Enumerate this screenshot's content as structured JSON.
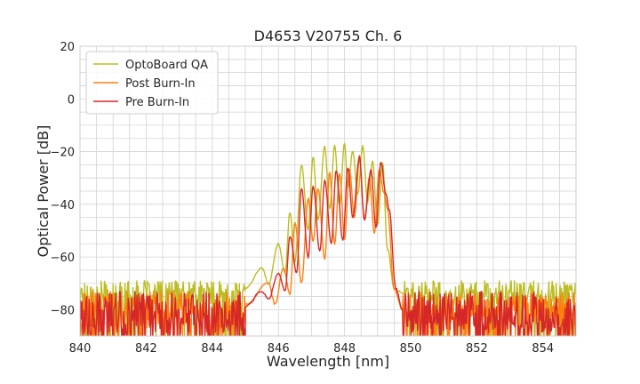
{
  "chart_data": {
    "type": "line",
    "title": "D4653 V20755 Ch. 6",
    "xlabel": "Wavelength [nm]",
    "ylabel": "Optical Power [dB]",
    "xlim": [
      840,
      855
    ],
    "ylim": [
      -90,
      20
    ],
    "xticks": [
      840,
      842,
      844,
      846,
      848,
      850,
      852,
      854
    ],
    "yticks": [
      -80,
      -60,
      -40,
      -20,
      0,
      20
    ],
    "xtick_labels": [
      "840",
      "842",
      "844",
      "846",
      "848",
      "850",
      "852",
      "854"
    ],
    "ytick_labels": [
      "−80",
      "−60",
      "−40",
      "−20",
      "0",
      "20"
    ],
    "x_minor_step": 0.5,
    "y_minor_step": 5,
    "grid": true,
    "legend_position": "top-left",
    "series": [
      {
        "name": "OptoBoard QA",
        "color": "#bcbd22",
        "noise_floor": -74,
        "noise_spread": 5,
        "x": [
          845.0,
          845.5,
          845.7,
          846.0,
          846.2,
          846.35,
          846.5,
          846.7,
          846.9,
          847.05,
          847.2,
          847.4,
          847.55,
          847.7,
          847.85,
          848.0,
          848.1,
          848.25,
          848.4,
          848.55,
          848.7,
          848.85,
          849.0,
          849.15,
          849.3,
          849.5,
          849.8
        ],
        "y": [
          -72,
          -64,
          -70,
          -55,
          -66,
          -43,
          -62,
          -25,
          -50,
          -22,
          -46,
          -18,
          -42,
          -18,
          -40,
          -17,
          -34,
          -20,
          -36,
          -18,
          -39,
          -24,
          -48,
          -24,
          -57,
          -72,
          -74
        ]
      },
      {
        "name": "Post Burn-In",
        "color": "#ff7f0e",
        "noise_floor": -80,
        "noise_spread": 7,
        "x": [
          845.0,
          845.7,
          845.9,
          846.15,
          846.35,
          846.5,
          846.7,
          846.9,
          847.05,
          847.2,
          847.4,
          847.55,
          847.7,
          847.85,
          848.0,
          848.15,
          848.3,
          848.45,
          848.6,
          848.75,
          848.9,
          849.05,
          849.2,
          849.3,
          849.5,
          849.75
        ],
        "y": [
          -78,
          -70,
          -78,
          -64,
          -74,
          -47,
          -70,
          -38,
          -54,
          -34,
          -61,
          -28,
          -55,
          -28,
          -53,
          -27,
          -45,
          -23,
          -46,
          -30,
          -51,
          -27,
          -36,
          -42,
          -72,
          -80
        ]
      },
      {
        "name": "Pre Burn-In",
        "color": "#d62728",
        "noise_floor": -81,
        "noise_spread": 8,
        "x": [
          845.0,
          845.5,
          845.7,
          846.0,
          846.2,
          846.35,
          846.55,
          846.7,
          846.9,
          847.05,
          847.25,
          847.4,
          847.6,
          847.75,
          847.95,
          848.1,
          848.25,
          848.45,
          848.6,
          848.8,
          848.95,
          849.1,
          849.25,
          849.35,
          849.55,
          849.75
        ],
        "y": [
          -79,
          -73,
          -76,
          -66,
          -73,
          -52,
          -66,
          -34,
          -60,
          -33,
          -58,
          -31,
          -55,
          -27,
          -54,
          -26,
          -45,
          -22,
          -46,
          -27,
          -49,
          -24,
          -36,
          -42,
          -72,
          -80
        ]
      }
    ]
  }
}
